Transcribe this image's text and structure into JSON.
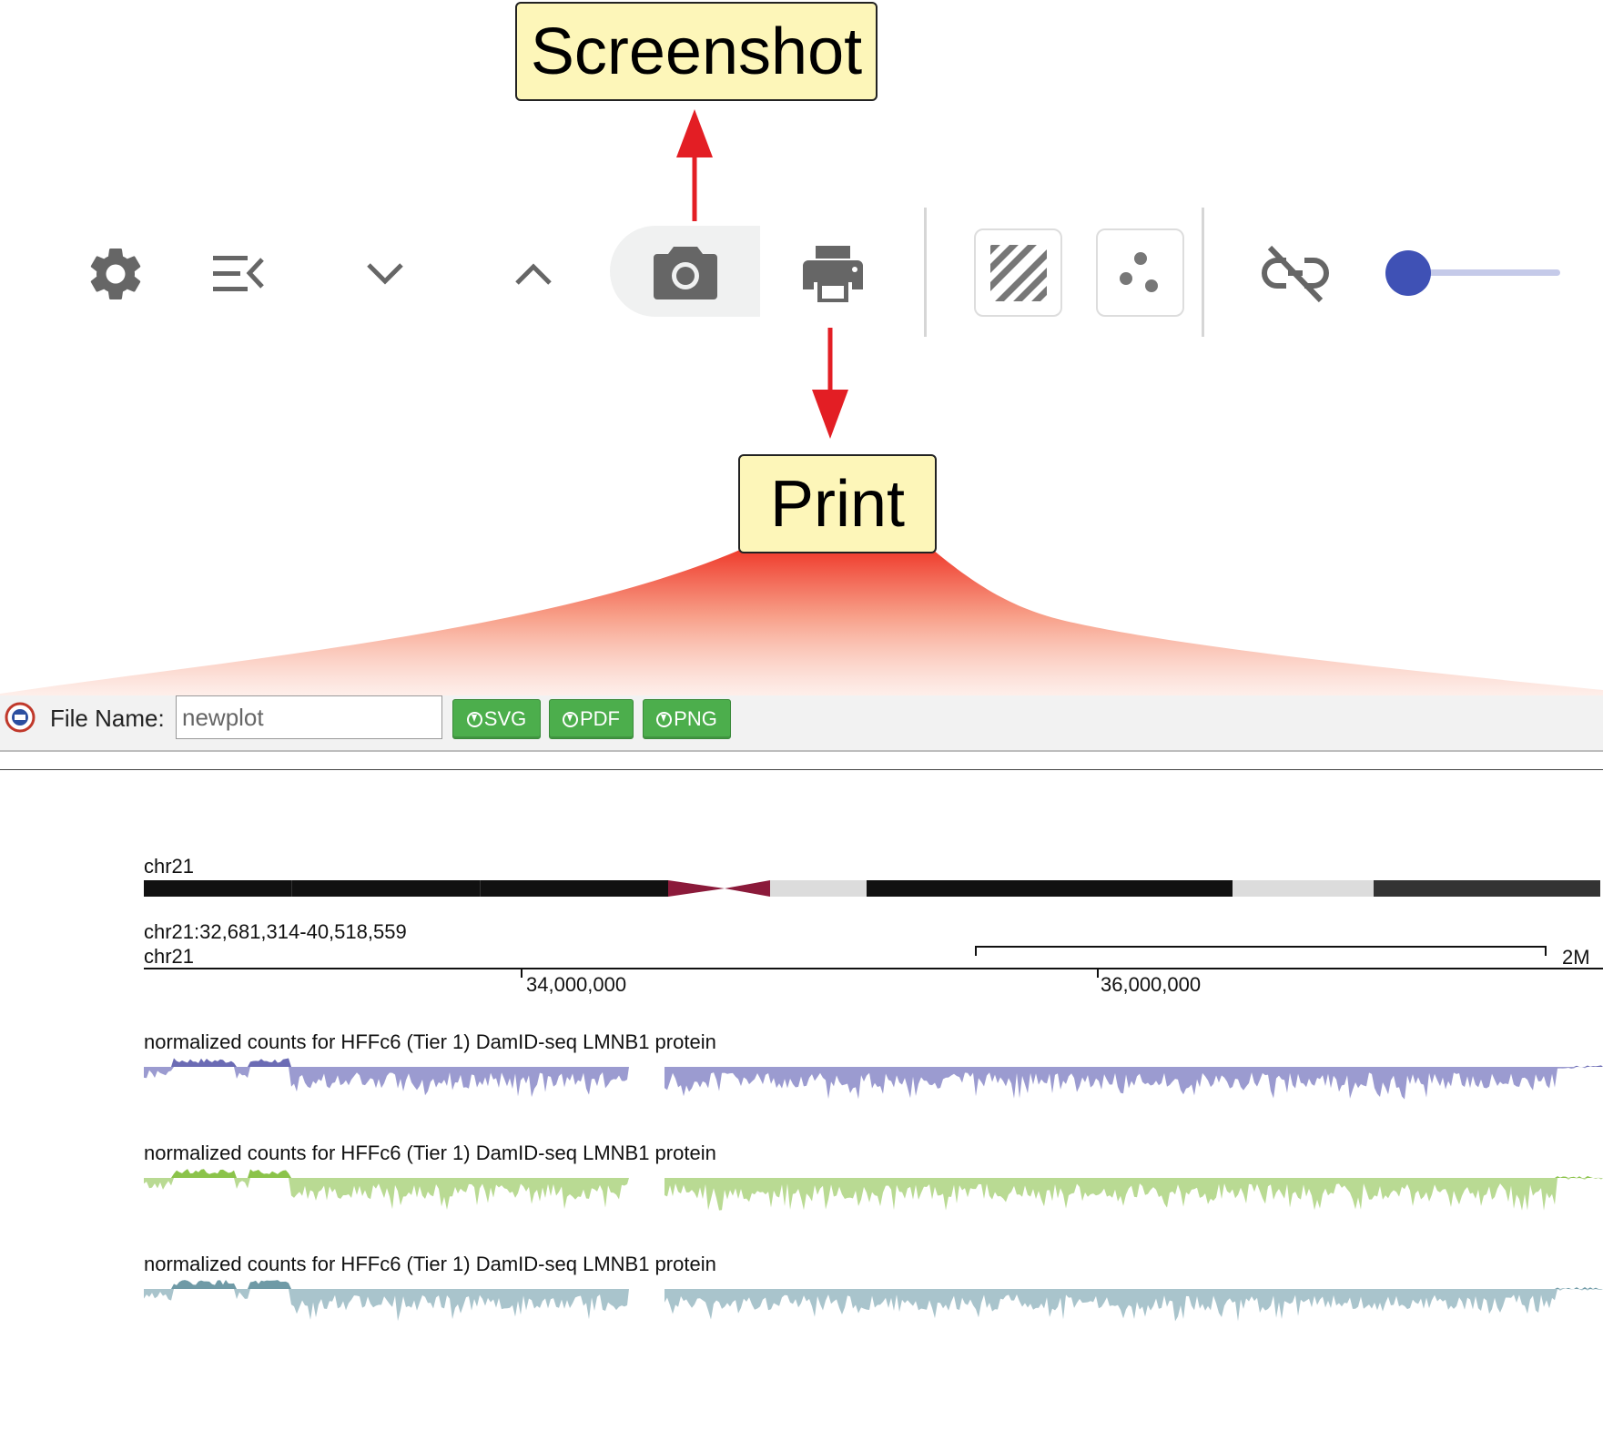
{
  "callouts": {
    "screenshot": "Screenshot",
    "print": "Print"
  },
  "toolbar_icons": [
    "gear-icon",
    "collapse-menu-icon",
    "chevron-down-icon",
    "chevron-up-icon",
    "camera-icon",
    "printer-icon",
    "hatch-pattern-icon",
    "scatter-dots-icon",
    "unlink-icon",
    "slider"
  ],
  "slider": {
    "value_fraction": 0.0,
    "accent": "#3f51b5",
    "track": "#c5cae9"
  },
  "export_bar": {
    "file_label": "File Name:",
    "filename_value": "newplot",
    "buttons": [
      "SVG",
      "PDF",
      "PNG"
    ],
    "button_color": "#4cae4c"
  },
  "genome": {
    "ideogram_label": "chr21",
    "region": "chr21:32,681,314-40,518,559",
    "chrom": "chr21",
    "scale_label": "2M",
    "ticks": [
      "34,000,000",
      "36,000,000"
    ]
  },
  "tracks": [
    {
      "title": "normalized counts for HFFc6 (Tier 1) DamID-seq LMNB1 protein",
      "color": "#9b9bd0",
      "pos_color": "#6b6bb4"
    },
    {
      "title": "normalized counts for HFFc6 (Tier 1) DamID-seq LMNB1 protein",
      "color": "#b9da93",
      "pos_color": "#8bc34a"
    },
    {
      "title": "normalized counts for HFFc6 (Tier 1) DamID-seq LMNB1 protein",
      "color": "#a9c4cc",
      "pos_color": "#6f9aa6"
    }
  ],
  "colors": {
    "arrow": "#e31e24",
    "callout_bg": "#fdf6b9",
    "icon_gray": "#666666"
  }
}
